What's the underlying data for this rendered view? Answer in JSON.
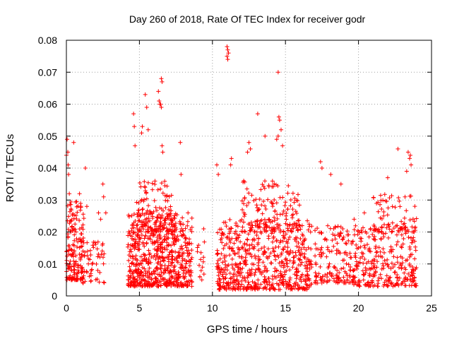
{
  "chart_data": {
    "type": "scatter",
    "title": "Day 260 of 2018, Rate Of TEC Index for receiver godr",
    "xlabel": "GPS time / hours",
    "ylabel": "ROTI / TECUs",
    "xlim": [
      0,
      25
    ],
    "ylim": [
      0,
      0.08
    ],
    "x_ticks": [
      "0",
      "5",
      "10",
      "15",
      "20",
      "25"
    ],
    "y_ticks": [
      "0",
      "0.01",
      "0.02",
      "0.03",
      "0.04",
      "0.05",
      "0.06",
      "0.07",
      "0.08"
    ],
    "grid": true,
    "marker": "+",
    "color": "#ff0000",
    "clusters": [
      {
        "x": [
          0.0,
          1.2
        ],
        "y": [
          0.005,
          0.03
        ],
        "n": 160
      },
      {
        "x": [
          1.0,
          2.6
        ],
        "y": [
          0.004,
          0.018
        ],
        "n": 60
      },
      {
        "x": [
          4.2,
          8.6
        ],
        "y": [
          0.003,
          0.026
        ],
        "n": 650
      },
      {
        "x": [
          4.8,
          7.2
        ],
        "y": [
          0.02,
          0.036
        ],
        "n": 120
      },
      {
        "x": [
          8.9,
          9.5
        ],
        "y": [
          0.005,
          0.017
        ],
        "n": 15
      },
      {
        "x": [
          10.3,
          16.8
        ],
        "y": [
          0.002,
          0.024
        ],
        "n": 620
      },
      {
        "x": [
          12.0,
          16.0
        ],
        "y": [
          0.02,
          0.036
        ],
        "n": 140
      },
      {
        "x": [
          17.0,
          19.6
        ],
        "y": [
          0.004,
          0.022
        ],
        "n": 150
      },
      {
        "x": [
          19.6,
          24.0
        ],
        "y": [
          0.003,
          0.022
        ],
        "n": 300
      },
      {
        "x": [
          21.0,
          24.0
        ],
        "y": [
          0.02,
          0.032
        ],
        "n": 70
      }
    ],
    "points": [
      [
        0.0,
        0.044
      ],
      [
        0.05,
        0.049
      ],
      [
        0.1,
        0.045
      ],
      [
        0.12,
        0.041
      ],
      [
        0.15,
        0.038
      ],
      [
        0.2,
        0.032
      ],
      [
        0.5,
        0.048
      ],
      [
        1.3,
        0.04
      ],
      [
        1.4,
        0.028
      ],
      [
        0.9,
        0.032
      ],
      [
        2.2,
        0.026
      ],
      [
        2.35,
        0.024
      ],
      [
        2.5,
        0.035
      ],
      [
        2.55,
        0.031
      ],
      [
        2.7,
        0.026
      ],
      [
        4.6,
        0.057
      ],
      [
        4.65,
        0.053
      ],
      [
        4.7,
        0.047
      ],
      [
        5.15,
        0.051
      ],
      [
        5.2,
        0.053
      ],
      [
        5.4,
        0.063
      ],
      [
        5.5,
        0.059
      ],
      [
        5.6,
        0.052
      ],
      [
        6.5,
        0.068
      ],
      [
        6.55,
        0.067
      ],
      [
        6.3,
        0.064
      ],
      [
        6.35,
        0.061
      ],
      [
        6.4,
        0.06
      ],
      [
        6.45,
        0.06
      ],
      [
        6.5,
        0.059
      ],
      [
        6.6,
        0.045
      ],
      [
        6.55,
        0.047
      ],
      [
        7.8,
        0.048
      ],
      [
        7.85,
        0.038
      ],
      [
        9.4,
        0.021
      ],
      [
        10.3,
        0.041
      ],
      [
        10.4,
        0.038
      ],
      [
        11.0,
        0.078
      ],
      [
        11.05,
        0.077
      ],
      [
        11.1,
        0.076
      ],
      [
        11.0,
        0.075
      ],
      [
        11.05,
        0.074
      ],
      [
        11.3,
        0.043
      ],
      [
        11.25,
        0.041
      ],
      [
        12.4,
        0.045
      ],
      [
        12.5,
        0.048
      ],
      [
        12.6,
        0.046
      ],
      [
        13.1,
        0.057
      ],
      [
        14.5,
        0.07
      ],
      [
        14.55,
        0.056
      ],
      [
        14.6,
        0.055
      ],
      [
        14.7,
        0.052
      ],
      [
        14.4,
        0.049
      ],
      [
        14.5,
        0.05
      ],
      [
        14.8,
        0.047
      ],
      [
        13.6,
        0.05
      ],
      [
        17.4,
        0.042
      ],
      [
        17.5,
        0.04
      ],
      [
        18.1,
        0.038
      ],
      [
        18.8,
        0.035
      ],
      [
        22.0,
        0.037
      ],
      [
        22.7,
        0.046
      ],
      [
        23.4,
        0.045
      ],
      [
        23.5,
        0.043
      ],
      [
        23.6,
        0.041
      ],
      [
        23.55,
        0.044
      ],
      [
        23.3,
        0.039
      ],
      [
        19.7,
        0.024
      ],
      [
        20.4,
        0.026
      ]
    ]
  }
}
